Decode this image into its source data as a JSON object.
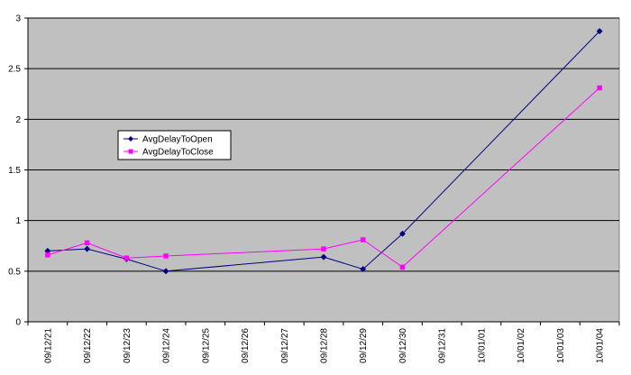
{
  "chart_data": {
    "type": "line",
    "categories": [
      "09/12/21",
      "09/12/22",
      "09/12/23",
      "09/12/24",
      "09/12/25",
      "09/12/26",
      "09/12/27",
      "09/12/28",
      "09/12/29",
      "09/12/30",
      "09/12/31",
      "10/01/01",
      "10/01/02",
      "10/01/03",
      "10/01/04"
    ],
    "series": [
      {
        "name": "AvgDelayToOpen",
        "color": "#000080",
        "marker": "diamond",
        "points": [
          {
            "x": "09/12/21",
            "y": 0.7
          },
          {
            "x": "09/12/22",
            "y": 0.72
          },
          {
            "x": "09/12/23",
            "y": 0.62
          },
          {
            "x": "09/12/24",
            "y": 0.5
          },
          {
            "x": "09/12/28",
            "y": 0.64
          },
          {
            "x": "09/12/29",
            "y": 0.52
          },
          {
            "x": "09/12/30",
            "y": 0.87
          },
          {
            "x": "10/01/04",
            "y": 2.87
          }
        ]
      },
      {
        "name": "AvgDelayToClose",
        "color": "#ff00ff",
        "marker": "square",
        "points": [
          {
            "x": "09/12/21",
            "y": 0.66
          },
          {
            "x": "09/12/22",
            "y": 0.78
          },
          {
            "x": "09/12/23",
            "y": 0.63
          },
          {
            "x": "09/12/24",
            "y": 0.65
          },
          {
            "x": "09/12/28",
            "y": 0.72
          },
          {
            "x": "09/12/29",
            "y": 0.81
          },
          {
            "x": "09/12/30",
            "y": 0.54
          },
          {
            "x": "10/01/04",
            "y": 2.31
          }
        ]
      }
    ],
    "ylim": [
      0,
      3
    ],
    "yticks": [
      "0",
      "0.5",
      "1",
      "1.5",
      "2",
      "2.5",
      "3"
    ],
    "grid": true,
    "plot_background": "#c0c0c0",
    "legend_position": "left, upper-middle"
  }
}
